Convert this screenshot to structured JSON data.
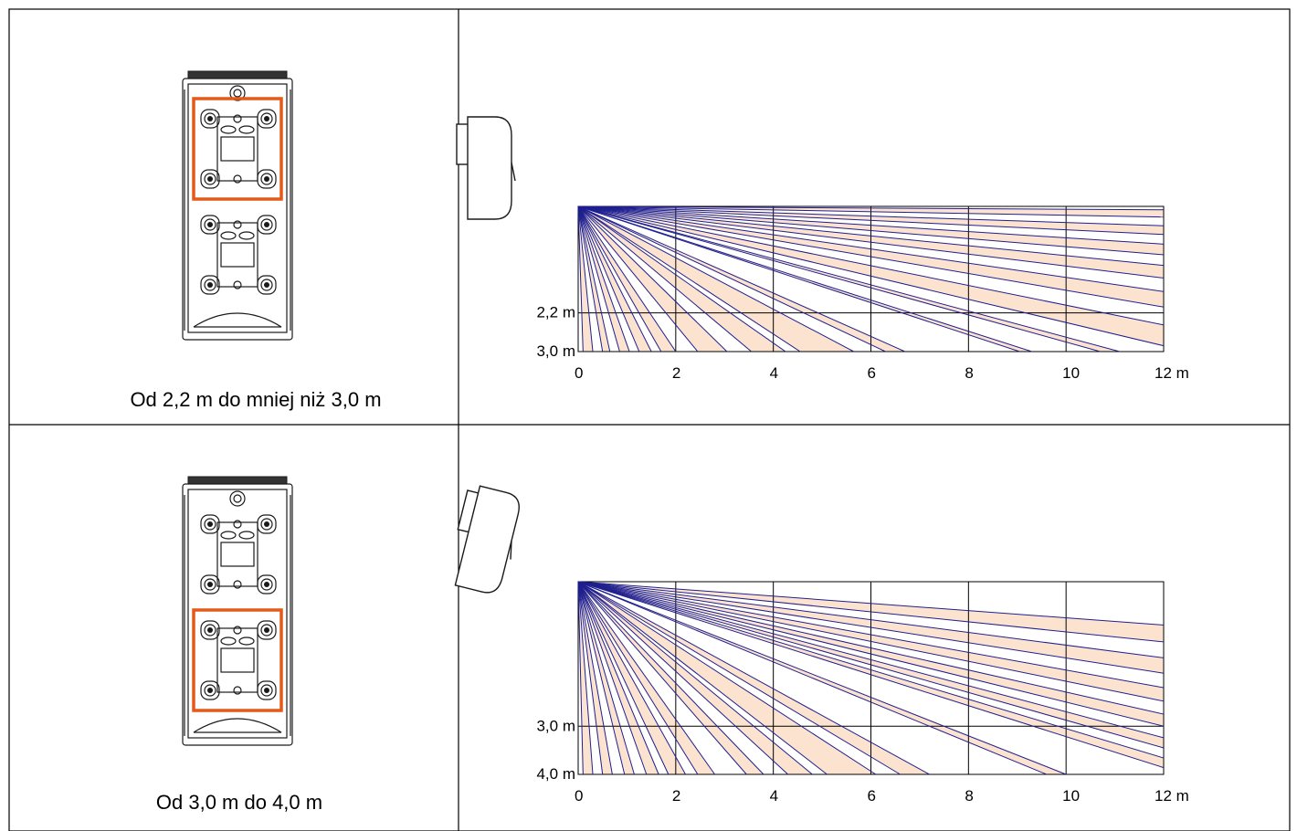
{
  "rows": [
    {
      "caption": "Od 2,2 m do mniej niż 3,0 m",
      "bracket_highlight": "upper",
      "x_ticks": [
        "0",
        "2",
        "4",
        "6",
        "8",
        "10",
        "12 m"
      ],
      "y_ticks": [
        "2,2 m",
        "3,0 m"
      ],
      "y_tick_values": [
        2.2,
        3.0
      ],
      "x_range": [
        0,
        12
      ],
      "y_range": [
        0,
        3.0
      ],
      "beam_ends_m": [
        0.1,
        0.3,
        0.5,
        0.65,
        0.85,
        1.05,
        1.25,
        1.5,
        1.7,
        2.0,
        2.45,
        3.05,
        3.55,
        4.25,
        4.55,
        5.65,
        6.3,
        6.7,
        9.05,
        9.3,
        10.7,
        11.1
      ],
      "far_beam_heights_m": [
        0.07,
        0.22,
        0.4,
        0.58,
        0.78,
        1.0,
        1.22,
        1.48,
        1.76,
        2.08,
        2.45,
        2.88
      ],
      "bands": [
        [
          0,
          1
        ],
        [
          2,
          3
        ],
        [
          4,
          5
        ],
        [
          6,
          7
        ],
        [
          8,
          9
        ],
        [
          10,
          11
        ],
        [
          12,
          13
        ],
        [
          14,
          15
        ],
        [
          16,
          17
        ],
        [
          18,
          19
        ],
        [
          20,
          21
        ],
        [
          22,
          23
        ],
        [
          24,
          25
        ],
        [
          26,
          27
        ],
        [
          28,
          29
        ],
        [
          30,
          31
        ],
        [
          32,
          33
        ]
      ]
    },
    {
      "caption": "Od 3,0 m do 4,0 m",
      "bracket_highlight": "lower",
      "x_ticks": [
        "0",
        "2",
        "4",
        "6",
        "8",
        "10",
        "12 m"
      ],
      "y_ticks": [
        "3,0 m",
        "4,0 m"
      ],
      "y_tick_values": [
        3.0,
        4.0
      ],
      "x_range": [
        0,
        12
      ],
      "y_range": [
        0,
        4.0
      ],
      "beam_ends_m": [
        0.1,
        0.3,
        0.5,
        0.7,
        0.95,
        1.15,
        1.4,
        1.65,
        1.85,
        2.2,
        2.45,
        2.8,
        3.45,
        3.8,
        4.3,
        4.8,
        5.1,
        6.1,
        6.6,
        7.2,
        9.6,
        10.0
      ],
      "far_beam_heights_m": [
        0.9,
        1.25,
        1.58,
        1.9,
        2.2,
        2.48,
        2.75,
        3.0,
        3.24,
        3.45,
        3.66,
        3.86
      ],
      "bands": [
        [
          0,
          1
        ],
        [
          2,
          3
        ],
        [
          4,
          5
        ],
        [
          6,
          7
        ],
        [
          8,
          9
        ],
        [
          10,
          11
        ],
        [
          12,
          13
        ],
        [
          14,
          15
        ],
        [
          16,
          17
        ],
        [
          18,
          19
        ],
        [
          20,
          21
        ],
        [
          22,
          23
        ],
        [
          24,
          25
        ],
        [
          26,
          27
        ],
        [
          28,
          29
        ],
        [
          30,
          31
        ],
        [
          32,
          33
        ]
      ]
    }
  ],
  "colors": {
    "beam_line": "#1f1f8f",
    "coverage_fill": "#fbe3d0",
    "highlight_box": "#e35a1a",
    "grid": "#000000",
    "device_outline": "#1a1a1a"
  },
  "icons": {
    "detector_front": "pir-detector-back-plate-icon",
    "detector_side": "pir-detector-side-view-icon"
  }
}
